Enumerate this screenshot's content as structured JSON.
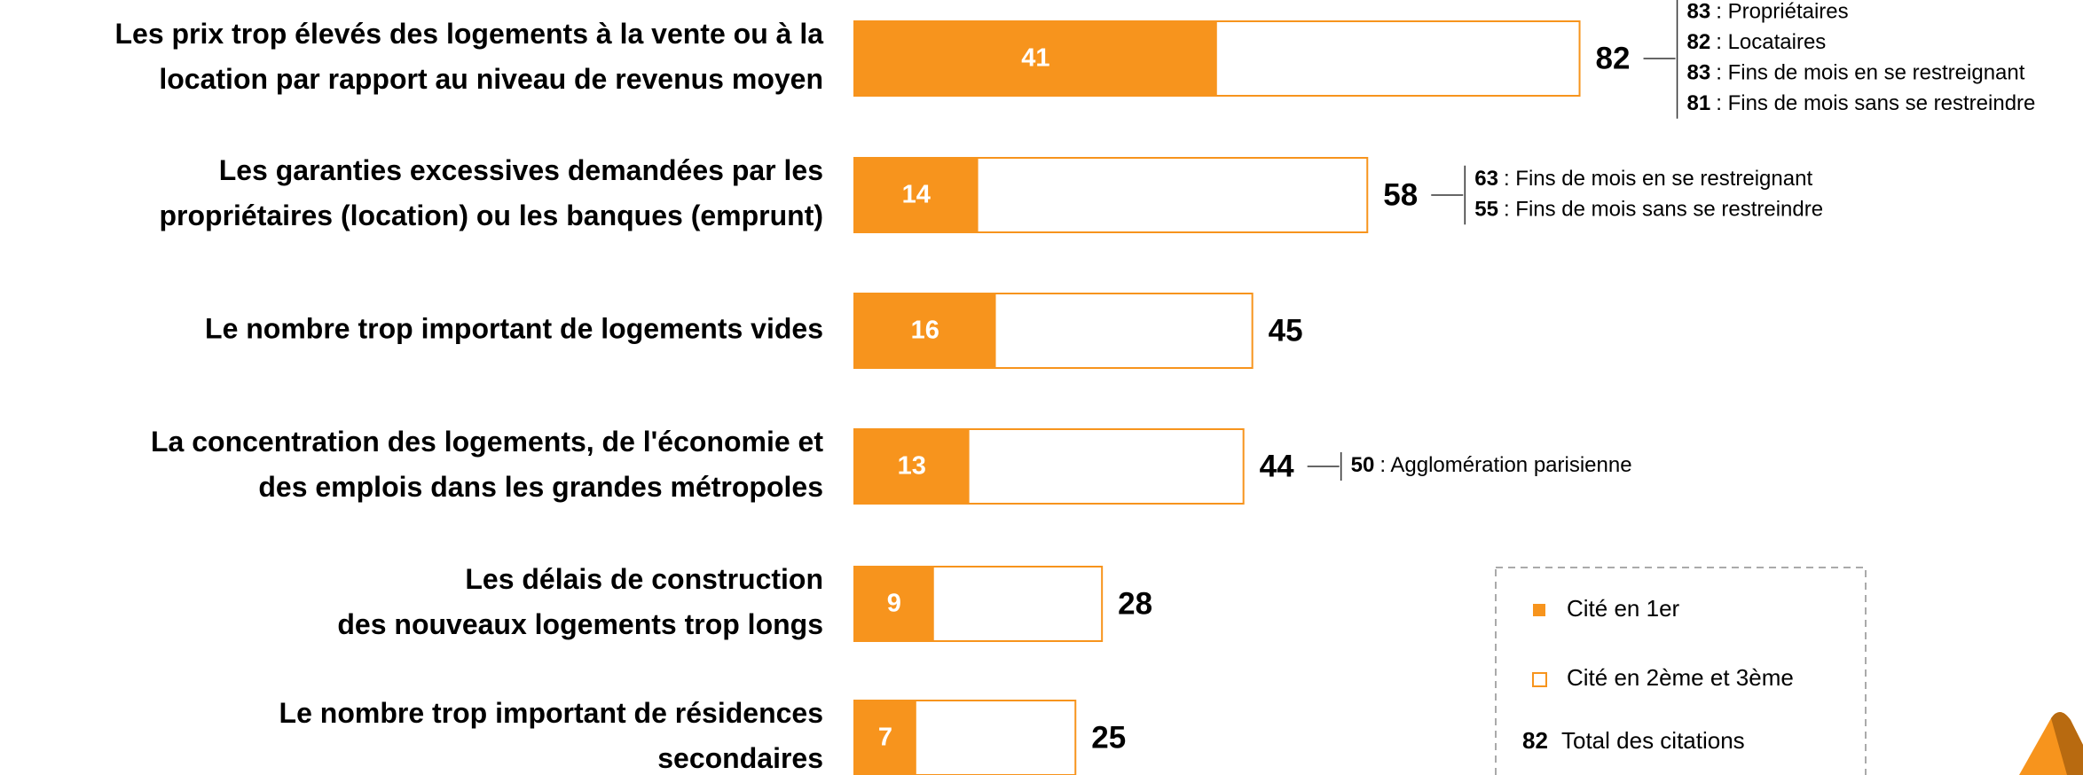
{
  "chart_data": {
    "type": "bar",
    "orientation": "horizontal",
    "categories": [
      [
        "Les prix trop élevés des logements à la vente ou à la",
        "location par rapport au niveau de revenus moyen"
      ],
      [
        "Les garanties excessives demandées par les",
        "propriétaires (location) ou les banques (emprunt)"
      ],
      [
        "Le nombre trop important de logements vides"
      ],
      [
        "La concentration des logements, de l'économie et",
        "des emplois dans les grandes métropoles"
      ],
      [
        "Les délais de construction",
        "des nouveaux logements trop longs"
      ],
      [
        "Le nombre trop important de résidences",
        "secondaires"
      ]
    ],
    "first_cited": [
      41,
      14,
      16,
      13,
      9,
      7
    ],
    "totals": [
      82,
      58,
      45,
      44,
      28,
      25
    ],
    "color": "#f7941d",
    "details": [
      [
        {
          "value": 83,
          "label": ": Propriétaires"
        },
        {
          "value": 82,
          "label": ": Locataires"
        },
        {
          "value": 83,
          "label": ": Fins de mois en se restreignant"
        },
        {
          "value": 81,
          "label": ": Fins de mois sans se restreindre"
        }
      ],
      [
        {
          "value": 63,
          "label": ": Fins de mois en se restreignant"
        },
        {
          "value": 55,
          "label": ": Fins de mois sans se restreindre"
        }
      ],
      [],
      [
        {
          "value": 50,
          "label": ": Agglomération parisienne"
        }
      ],
      [],
      []
    ],
    "legend": {
      "first": "Cité en 1er",
      "second": "Cité en 2ème et 3ème",
      "total_value": 82,
      "total_label": "Total des citations"
    }
  }
}
